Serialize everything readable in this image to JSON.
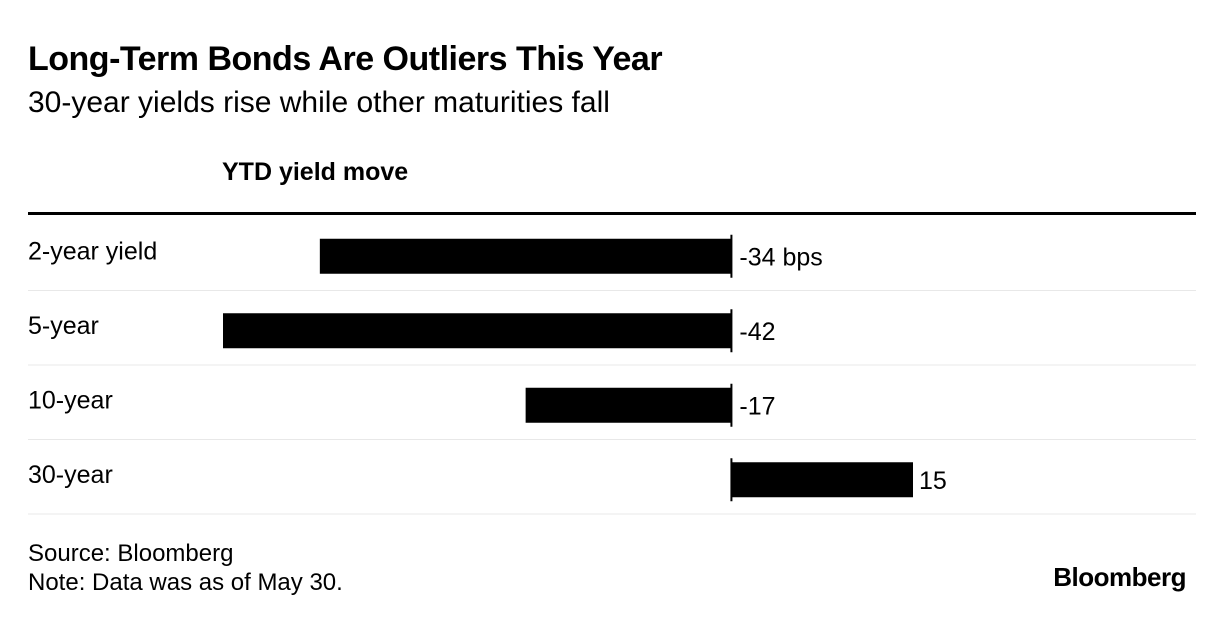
{
  "title": "Long-Term Bonds Are Outliers This Year",
  "subtitle": "30-year yields rise while other maturities fall",
  "column_header": "YTD yield move",
  "footer": {
    "source": "Source: Bloomberg",
    "note": "Note: Data was as of May 30."
  },
  "logo_text": "Bloomberg",
  "colors": {
    "bar": "#000000",
    "row_separator": "#e8e8e8",
    "text": "#000000"
  },
  "chart_data": {
    "type": "bar",
    "orientation": "horizontal",
    "categories": [
      "2-year yield",
      "5-year",
      "10-year",
      "30-year"
    ],
    "values": [
      -34,
      -42,
      -17,
      15
    ],
    "value_labels": [
      "-34 bps",
      "-42",
      "-17",
      "15"
    ],
    "unit": "bps",
    "title": "Long-Term Bonds Are Outliers This Year",
    "subtitle": "30-year yields rise while other maturities fall",
    "xlabel": "YTD yield move",
    "xlim": [
      -42,
      15
    ],
    "grid": false,
    "legend": "none"
  }
}
